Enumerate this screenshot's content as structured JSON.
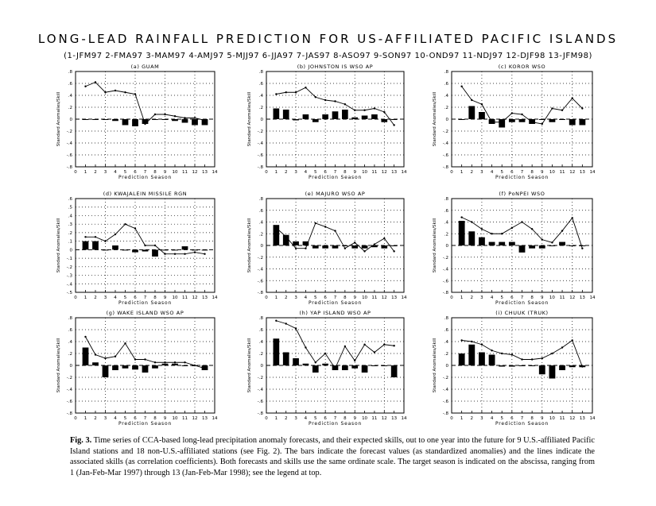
{
  "title": "LONG-LEAD RAINFALL PREDICTION FOR US-AFFILIATED PACIFIC ISLANDS",
  "season_legend": "(1-JFM97 2-FMA97 3-MAM97 4-AMJ97 5-MJJ97 6-JJA97 7-JAS97 8-ASO97 9-SON97 10-OND97 11-NDJ97 12-DJF98 13-JFM98)",
  "caption": {
    "label": "Fig. 3.",
    "text": "Time series of CCA-based long-lead precipitation anomaly forecasts, and their expected skills, out to one year into the future for 9 U.S.-affiliated Pacific Island stations and 18 non-U.S.-affiliated stations (see Fig. 2). The bars indicate the forecast values (as standardized anomalies) and the lines indicate the associated skills (as correlation coefficients). Both forecasts and skills use the same ordinate scale. The target season is indicated on the abscissa, ranging from 1 (Jan-Feb-Mar 1997) through 13 (Jan-Feb-Mar 1998); see the legend at top."
  },
  "chart_data": [
    {
      "type": "bar",
      "title": "(a) GUAM",
      "xlabel": "Prediction Season",
      "ylabel": "Standard Anomalies/Skill",
      "x": [
        1,
        2,
        3,
        4,
        5,
        6,
        7,
        8,
        9,
        10,
        11,
        12,
        13
      ],
      "xlim": [
        0,
        14
      ],
      "ylim": [
        -0.8,
        0.8
      ],
      "yticks": [
        -0.8,
        -0.6,
        -0.4,
        -0.2,
        0,
        0.2,
        0.4,
        0.6,
        0.8
      ],
      "series": [
        {
          "kind": "bar",
          "values": [
            0,
            0,
            0,
            -0.03,
            -0.1,
            -0.12,
            -0.08,
            0,
            0,
            -0.03,
            -0.06,
            -0.1,
            -0.1
          ]
        },
        {
          "kind": "line",
          "values": [
            0.55,
            0.62,
            0.45,
            0.48,
            0.45,
            0.42,
            -0.08,
            0.08,
            0.08,
            0.05,
            0.02,
            0.02,
            -0.02
          ]
        }
      ]
    },
    {
      "type": "bar",
      "title": "(b) JOHNSTON IS WSO AP",
      "xlabel": "Prediction Season",
      "ylabel": "Standard Anomalies/Skill",
      "x": [
        1,
        2,
        3,
        4,
        5,
        6,
        7,
        8,
        9,
        10,
        11,
        12,
        13
      ],
      "xlim": [
        0,
        14
      ],
      "ylim": [
        -0.8,
        0.8
      ],
      "yticks": [
        -0.8,
        -0.6,
        -0.4,
        -0.2,
        0,
        0.2,
        0.4,
        0.6,
        0.8
      ],
      "series": [
        {
          "kind": "bar",
          "values": [
            0.18,
            0.16,
            -0.02,
            0.08,
            -0.05,
            0.08,
            0.13,
            0.16,
            0.03,
            0.06,
            0.08,
            -0.05,
            0
          ]
        },
        {
          "kind": "line",
          "values": [
            0.42,
            0.45,
            0.45,
            0.53,
            0.37,
            0.32,
            0.3,
            0.25,
            0.15,
            0.15,
            0.18,
            0.12,
            -0.1
          ]
        }
      ]
    },
    {
      "type": "bar",
      "title": "(c) KOROR WSO",
      "xlabel": "Prediction Season",
      "ylabel": "Standard Anomalies/Skill",
      "x": [
        1,
        2,
        3,
        4,
        5,
        6,
        7,
        8,
        9,
        10,
        11,
        12,
        13
      ],
      "xlim": [
        0,
        14
      ],
      "ylim": [
        -0.8,
        0.8
      ],
      "yticks": [
        -0.8,
        -0.6,
        -0.4,
        -0.2,
        0,
        0.2,
        0.4,
        0.6,
        0.8
      ],
      "series": [
        {
          "kind": "bar",
          "values": [
            0,
            0.22,
            0.12,
            -0.08,
            -0.14,
            -0.05,
            -0.05,
            -0.08,
            0,
            -0.05,
            0,
            -0.1,
            -0.1
          ]
        },
        {
          "kind": "line",
          "values": [
            0.55,
            0.32,
            0.25,
            -0.05,
            -0.05,
            0.1,
            0.08,
            -0.05,
            -0.08,
            0.18,
            0.15,
            0.35,
            0.18
          ]
        }
      ]
    },
    {
      "type": "bar",
      "title": "(d) KWAJALEIN MISSILE RGN",
      "xlabel": "Prediction Season",
      "ylabel": "Standard Anomalies/Skill",
      "x": [
        1,
        2,
        3,
        4,
        5,
        6,
        7,
        8,
        9,
        10,
        11,
        12,
        13
      ],
      "xlim": [
        0,
        14
      ],
      "ylim": [
        -0.5,
        0.6
      ],
      "yticks": [
        -0.5,
        -0.4,
        -0.3,
        -0.2,
        -0.1,
        0,
        0.1,
        0.2,
        0.3,
        0.4,
        0.5,
        0.6
      ],
      "series": [
        {
          "kind": "bar",
          "values": [
            0.1,
            0.1,
            0,
            0.05,
            0,
            -0.03,
            -0.02,
            -0.08,
            0,
            0,
            0.04,
            0,
            0
          ]
        },
        {
          "kind": "line",
          "values": [
            0.15,
            0.15,
            0.1,
            0.18,
            0.3,
            0.25,
            0.05,
            0.05,
            -0.05,
            -0.05,
            -0.05,
            -0.03,
            -0.05
          ]
        }
      ]
    },
    {
      "type": "bar",
      "title": "(e) MAJURO WSO AP",
      "xlabel": "Prediction Season",
      "ylabel": "Standard Anomalies/Skill",
      "x": [
        1,
        2,
        3,
        4,
        5,
        6,
        7,
        8,
        9,
        10,
        11,
        12,
        13
      ],
      "xlim": [
        0,
        14
      ],
      "ylim": [
        -0.8,
        0.8
      ],
      "yticks": [
        -0.8,
        -0.6,
        -0.4,
        -0.2,
        0,
        0.2,
        0.4,
        0.6,
        0.8
      ],
      "series": [
        {
          "kind": "bar",
          "values": [
            0.35,
            0.18,
            0.07,
            0.07,
            -0.05,
            -0.05,
            -0.05,
            0,
            -0.05,
            -0.05,
            -0.03,
            -0.05,
            0
          ]
        },
        {
          "kind": "line",
          "values": [
            0.3,
            0.15,
            -0.05,
            -0.05,
            0.38,
            0.32,
            0.25,
            -0.05,
            0.05,
            -0.1,
            0.02,
            0.12,
            -0.1
          ]
        }
      ]
    },
    {
      "type": "bar",
      "title": "(f) PoNPEI WSO",
      "xlabel": "Prediction Season",
      "ylabel": "Standard Anomalies/Skill",
      "x": [
        1,
        2,
        3,
        4,
        5,
        6,
        7,
        8,
        9,
        10,
        11,
        12,
        13
      ],
      "xlim": [
        0,
        14
      ],
      "ylim": [
        -0.8,
        0.8
      ],
      "yticks": [
        -0.8,
        -0.6,
        -0.4,
        -0.2,
        0,
        0.2,
        0.4,
        0.6,
        0.8
      ],
      "series": [
        {
          "kind": "bar",
          "values": [
            0.42,
            0.24,
            0.14,
            0.06,
            0.06,
            0.06,
            -0.12,
            -0.05,
            -0.05,
            0,
            0.06,
            0,
            0
          ]
        },
        {
          "kind": "line",
          "values": [
            0.48,
            0.4,
            0.28,
            0.2,
            0.2,
            0.3,
            0.4,
            0.28,
            0.1,
            0.05,
            0.25,
            0.47,
            -0.05
          ]
        }
      ]
    },
    {
      "type": "bar",
      "title": "(g) WAKE ISLAND WSO AP",
      "xlabel": "Prediction Season",
      "ylabel": "Standard Anomalies/Skill",
      "x": [
        1,
        2,
        3,
        4,
        5,
        6,
        7,
        8,
        9,
        10,
        11,
        12,
        13
      ],
      "xlim": [
        0,
        14
      ],
      "ylim": [
        -0.8,
        0.8
      ],
      "yticks": [
        -0.8,
        -0.6,
        -0.4,
        -0.2,
        0,
        0.2,
        0.4,
        0.6,
        0.8
      ],
      "series": [
        {
          "kind": "bar",
          "values": [
            0.3,
            0.05,
            -0.2,
            -0.08,
            -0.05,
            -0.07,
            -0.12,
            -0.05,
            0.03,
            0.03,
            0,
            0,
            -0.08
          ]
        },
        {
          "kind": "line",
          "values": [
            0.48,
            0.18,
            0.12,
            0.15,
            0.37,
            0.1,
            0.1,
            0.05,
            0.05,
            0.05,
            0.05,
            0,
            -0.05
          ]
        }
      ]
    },
    {
      "type": "bar",
      "title": "(h) YAP ISLAND WSO AP",
      "xlabel": "Prediction Season",
      "ylabel": "Standard Anomalies/Skill",
      "x": [
        1,
        2,
        3,
        4,
        5,
        6,
        7,
        8,
        9,
        10,
        11,
        12,
        13
      ],
      "xlim": [
        0,
        14
      ],
      "ylim": [
        -0.8,
        0.8
      ],
      "yticks": [
        -0.8,
        -0.6,
        -0.4,
        -0.2,
        0,
        0.2,
        0.4,
        0.6,
        0.8
      ],
      "series": [
        {
          "kind": "bar",
          "values": [
            0.45,
            0.22,
            0.12,
            0.03,
            -0.12,
            0.03,
            -0.08,
            -0.08,
            -0.05,
            -0.12,
            0,
            0,
            -0.2
          ]
        },
        {
          "kind": "line",
          "values": [
            0.75,
            0.7,
            0.62,
            0.3,
            0.05,
            0.2,
            -0.05,
            0.32,
            0.08,
            0.35,
            0.22,
            0.35,
            0.33
          ]
        }
      ]
    },
    {
      "type": "bar",
      "title": "(i) CHUUK (TRUK)",
      "xlabel": "Prediction Season",
      "ylabel": "Standard Anomalies/Skill",
      "x": [
        1,
        2,
        3,
        4,
        5,
        6,
        7,
        8,
        9,
        10,
        11,
        12,
        13
      ],
      "xlim": [
        0,
        14
      ],
      "ylim": [
        -0.8,
        0.8
      ],
      "yticks": [
        -0.8,
        -0.6,
        -0.4,
        -0.2,
        0,
        0.2,
        0.4,
        0.6,
        0.8
      ],
      "series": [
        {
          "kind": "bar",
          "values": [
            0.2,
            0.35,
            0.22,
            0.18,
            -0.02,
            -0.02,
            0,
            0,
            -0.15,
            -0.22,
            -0.08,
            -0.03,
            -0.03
          ]
        },
        {
          "kind": "line",
          "values": [
            0.42,
            0.4,
            0.35,
            0.25,
            0.2,
            0.18,
            0.1,
            0.1,
            0.12,
            0.2,
            0.3,
            0.42,
            -0.02
          ]
        }
      ]
    }
  ]
}
